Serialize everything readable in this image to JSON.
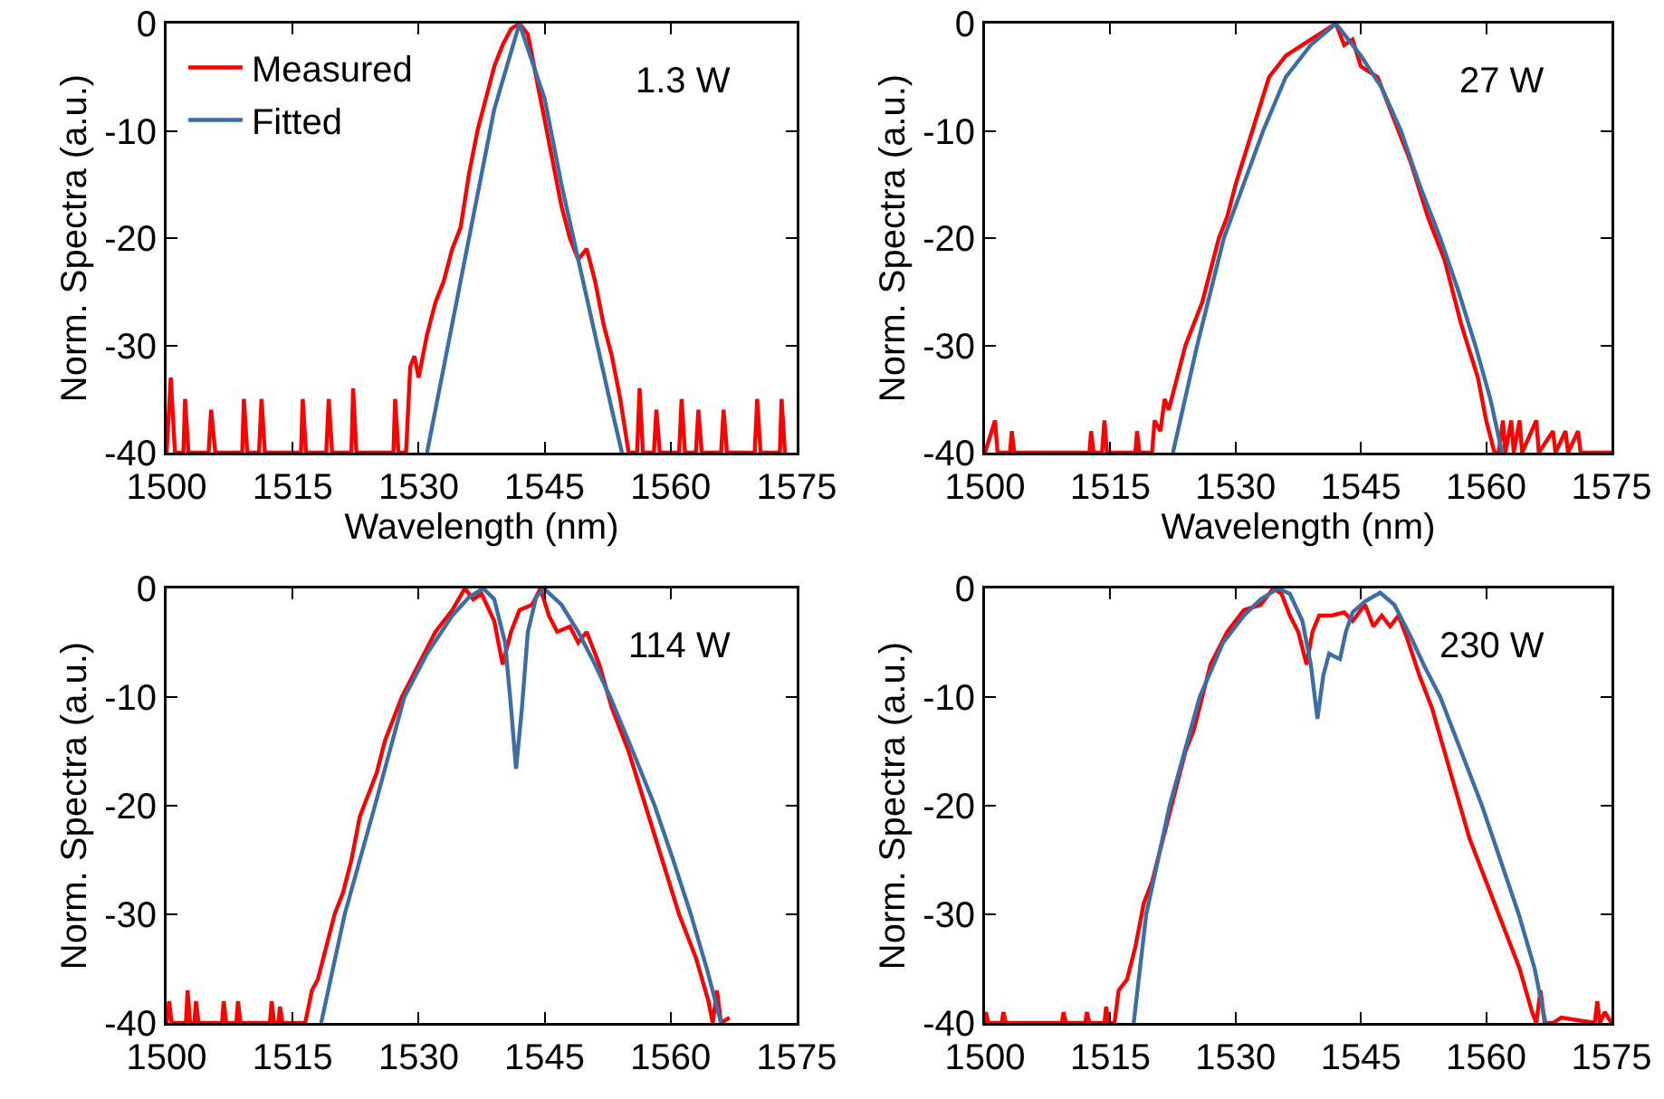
{
  "chart_data": [
    {
      "type": "line",
      "xlabel": "Wavelength (nm)",
      "ylabel": "Norm. Spectra (a.u.)",
      "annotations": [
        "1.3 W"
      ],
      "legend": "top left",
      "xlim": [
        1500,
        1575
      ],
      "xticks": [
        1500,
        1515,
        1530,
        1545,
        1560,
        1575
      ],
      "ylim": [
        -40,
        0
      ],
      "yticks": [
        -40,
        -30,
        -20,
        -10,
        0
      ],
      "series": [
        {
          "name": "Measured",
          "color": "#ff0000",
          "x": [
            1500,
            1500.5,
            1501,
            1502,
            1502.2,
            1502.6,
            1505,
            1505.3,
            1505.8,
            1509,
            1509.2,
            1509.6,
            1511,
            1511.3,
            1511.7,
            1516,
            1516.2,
            1516.6,
            1519,
            1519.3,
            1519.7,
            1522,
            1522.2,
            1522.6,
            1527,
            1527.2,
            1527.6,
            1528.5,
            1529,
            1529.5,
            1530,
            1531,
            1532,
            1533,
            1534,
            1535,
            1536,
            1537,
            1538,
            1539,
            1540,
            1541,
            1542,
            1543,
            1544,
            1545,
            1546,
            1547,
            1548,
            1549,
            1550,
            1551,
            1552,
            1553,
            1554,
            1555,
            1556,
            1556.3,
            1556.7,
            1558,
            1558.3,
            1558.7,
            1561,
            1561.3,
            1561.7,
            1563,
            1563.3,
            1563.7,
            1566,
            1566.3,
            1566.7,
            1570,
            1570.3,
            1570.7,
            1573,
            1573.2,
            1573.6
          ],
          "values": [
            -40,
            -33,
            -40,
            -40,
            -35,
            -40,
            -40,
            -36,
            -40,
            -40,
            -35,
            -40,
            -40,
            -35,
            -40,
            -40,
            -35,
            -40,
            -40,
            -35,
            -40,
            -40,
            -34,
            -40,
            -40,
            -35,
            -40,
            -40,
            -32,
            -31,
            -33,
            -29,
            -26,
            -24,
            -21,
            -19,
            -14,
            -10,
            -7,
            -4,
            -2,
            -0.5,
            0,
            -1,
            -5,
            -9,
            -13,
            -17,
            -20,
            -22,
            -21,
            -24,
            -28,
            -31,
            -35,
            -40,
            -40,
            -34,
            -40,
            -40,
            -36,
            -40,
            -40,
            -35,
            -40,
            -40,
            -36,
            -40,
            -40,
            -36,
            -40,
            -40,
            -35,
            -40,
            -40,
            -35,
            -40
          ]
        },
        {
          "name": "Fitted",
          "color": "#3c6ea5",
          "x": [
            1531,
            1533,
            1535,
            1537,
            1539,
            1542,
            1545,
            1547,
            1549,
            1551,
            1553,
            1554.2
          ],
          "values": [
            -40,
            -32,
            -24,
            -16,
            -8,
            0,
            -7,
            -15,
            -22,
            -29,
            -36,
            -40
          ]
        }
      ]
    },
    {
      "type": "line",
      "xlabel": "Wavelength (nm)",
      "ylabel": "Norm. Spectra (a.u.)",
      "annotations": [
        "27 W"
      ],
      "xlim": [
        1500,
        1575
      ],
      "xticks": [
        1500,
        1515,
        1530,
        1545,
        1560,
        1575
      ],
      "ylim": [
        -40,
        0
      ],
      "yticks": [
        -40,
        -30,
        -20,
        -10,
        0
      ],
      "series": [
        {
          "color": "#ff0000",
          "x": [
            1500,
            1501.2,
            1501.5,
            1503,
            1503.2,
            1503.5,
            1511.5,
            1512.5,
            1512.7,
            1513,
            1514,
            1514.3,
            1514.6,
            1518,
            1518.2,
            1518.5,
            1520,
            1520.3,
            1521,
            1521.5,
            1522,
            1523,
            1524,
            1526,
            1528,
            1529,
            1530,
            1532,
            1534,
            1536,
            1538,
            1540,
            1542,
            1543,
            1544,
            1545,
            1547,
            1549,
            1551,
            1553,
            1555,
            1557,
            1559,
            1560,
            1561,
            1561.5,
            1562,
            1562.3,
            1563,
            1563.3,
            1564,
            1564.3,
            1566,
            1566.3,
            1568,
            1568.3,
            1569.5,
            1569.8,
            1571,
            1571.3,
            1575
          ],
          "values": [
            -40,
            -37,
            -40,
            -40,
            -38,
            -40,
            -40,
            -40,
            -38,
            -40,
            -40,
            -37,
            -40,
            -40,
            -38,
            -40,
            -40,
            -37,
            -38,
            -35,
            -36,
            -33,
            -30,
            -26,
            -20,
            -18,
            -15,
            -10,
            -5,
            -3,
            -2,
            -1,
            0,
            -2,
            -1.5,
            -4,
            -5,
            -9,
            -13,
            -18,
            -22,
            -28,
            -33,
            -37,
            -40,
            -40,
            -37,
            -40,
            -37,
            -40,
            -37,
            -40,
            -37,
            -40,
            -38,
            -40,
            -38,
            -40,
            -38,
            -40,
            -40
          ]
        },
        {
          "color": "#3c6ea5",
          "x": [
            1522.5,
            1525.4,
            1528.6,
            1533.3,
            1536,
            1539,
            1542,
            1545,
            1547.5,
            1549.8,
            1552,
            1554.5,
            1556.7,
            1558.7,
            1560.5,
            1561.9
          ],
          "values": [
            -40,
            -30,
            -20,
            -10,
            -5,
            -2,
            0,
            -3,
            -6,
            -10,
            -15,
            -20,
            -25,
            -30,
            -35,
            -40
          ]
        }
      ]
    },
    {
      "type": "line",
      "ylabel": "Norm. Spectra (a.u.)",
      "annotations": [
        "114 W"
      ],
      "xlim": [
        1500,
        1575
      ],
      "xticks": [
        1500,
        1515,
        1530,
        1545,
        1560,
        1575
      ],
      "ylim": [
        -40,
        0
      ],
      "yticks": [
        -40,
        -30,
        -20,
        -10,
        0
      ],
      "series": [
        {
          "color": "#ff0000",
          "x": [
            1500,
            1500.3,
            1500.6,
            1502.3,
            1502.5,
            1502.8,
            1503.3,
            1503.5,
            1503.8,
            1506.6,
            1506.8,
            1507.1,
            1508.3,
            1508.5,
            1508.8,
            1512.3,
            1512.5,
            1512.8,
            1513.3,
            1513.5,
            1513.8,
            1516.3,
            1516.5,
            1517.3,
            1518,
            1519,
            1520,
            1521,
            1522,
            1523,
            1524,
            1525,
            1526,
            1527,
            1528,
            1530,
            1532,
            1534,
            1535.5,
            1536.5,
            1537.5,
            1539,
            1540,
            1541,
            1542,
            1543.5,
            1544.5,
            1545.5,
            1546.5,
            1548,
            1549,
            1550,
            1551.5,
            1553,
            1555,
            1557,
            1559,
            1561,
            1563,
            1564.5,
            1565,
            1565.5,
            1566,
            1567
          ],
          "values": [
            -40,
            -38,
            -40,
            -40,
            -37,
            -40,
            -40,
            -38,
            -40,
            -40,
            -38,
            -40,
            -40,
            -38,
            -40,
            -40,
            -38,
            -40,
            -40,
            -38.5,
            -40,
            -40,
            -40,
            -37,
            -36,
            -33,
            -30,
            -28,
            -25,
            -21,
            -19,
            -17,
            -14,
            -12,
            -10,
            -7,
            -4,
            -2,
            0,
            -1,
            -0.5,
            -3,
            -7,
            -4,
            -2,
            -1.5,
            0,
            -2.5,
            -4,
            -3.5,
            -5,
            -4,
            -7,
            -11,
            -15,
            -20,
            -25,
            -30,
            -34,
            -38,
            -40,
            -37,
            -40,
            -39.5
          ]
        },
        {
          "color": "#3c6ea5",
          "x": [
            1518.4,
            1521.2,
            1524.8,
            1528.3,
            1531,
            1534,
            1536,
            1537.7,
            1539,
            1540.3,
            1541,
            1541.6,
            1542.3,
            1543,
            1544,
            1544.9,
            1547,
            1549,
            1551,
            1552.8,
            1555.5,
            1558.1,
            1560.3,
            1562.4,
            1564.3,
            1566
          ],
          "values": [
            -40,
            -30,
            -20,
            -10,
            -6,
            -2.5,
            -0.8,
            0,
            -1,
            -5,
            -11,
            -16.6,
            -11,
            -4,
            -0.8,
            0,
            -1.5,
            -4,
            -7,
            -10,
            -15,
            -20,
            -25,
            -30,
            -35,
            -40
          ]
        }
      ]
    },
    {
      "type": "line",
      "ylabel": "Norm. Spectra (a.u.)",
      "annotations": [
        "230 W"
      ],
      "xlim": [
        1500,
        1575
      ],
      "xticks": [
        1500,
        1515,
        1530,
        1545,
        1560,
        1575
      ],
      "ylim": [
        -40,
        0
      ],
      "yticks": [
        -40,
        -30,
        -20,
        -10,
        0
      ],
      "series": [
        {
          "color": "#ff0000",
          "x": [
            1500,
            1500.1,
            1500.4,
            1502,
            1502.2,
            1502.5,
            1509.2,
            1509.4,
            1509.7,
            1512,
            1512.2,
            1512.5,
            1514.3,
            1514.5,
            1514.8,
            1515.5,
            1516,
            1517,
            1518,
            1519,
            1520,
            1521,
            1522,
            1523,
            1524,
            1525,
            1526,
            1527,
            1529,
            1531,
            1533,
            1534.5,
            1535.5,
            1536.5,
            1537.5,
            1538.5,
            1539.2,
            1540,
            1541.5,
            1543,
            1544,
            1545.5,
            1546.5,
            1547.5,
            1548.5,
            1549.5,
            1550.5,
            1552,
            1553.5,
            1555,
            1556.5,
            1558,
            1560,
            1562,
            1564,
            1565.5,
            1566,
            1566.5,
            1567,
            1568,
            1569,
            1573,
            1573.3,
            1573.6,
            1574.2,
            1575
          ],
          "values": [
            -40,
            -39,
            -40,
            -40,
            -39,
            -40,
            -40,
            -39,
            -40,
            -40,
            -39,
            -40,
            -40,
            -38.5,
            -40,
            -40,
            -37,
            -36,
            -33,
            -29,
            -27,
            -24,
            -21,
            -18,
            -15,
            -13,
            -10,
            -7,
            -4,
            -2,
            -1.5,
            0,
            -0.5,
            -2.5,
            -4,
            -7,
            -4,
            -2.5,
            -2.5,
            -2.2,
            -3,
            -1.5,
            -3.5,
            -2.5,
            -3.5,
            -2.5,
            -4.5,
            -8,
            -11,
            -15,
            -19,
            -23,
            -27,
            -31,
            -35,
            -39,
            -40,
            -37,
            -40,
            -40,
            -39.5,
            -40,
            -38,
            -40,
            -39,
            -40
          ]
        },
        {
          "color": "#3c6ea5",
          "x": [
            1517.8,
            1519.3,
            1522.1,
            1525.7,
            1528.5,
            1531,
            1533,
            1535.1,
            1536.5,
            1538,
            1539,
            1539.8,
            1540.5,
            1541.2,
            1541.9,
            1542.5,
            1543.2,
            1544,
            1545.5,
            1547.3,
            1549,
            1551,
            1552.5,
            1554.5,
            1557,
            1559.5,
            1561.7,
            1563.9,
            1565.8,
            1567.1
          ],
          "values": [
            -40,
            -30,
            -20,
            -10,
            -5,
            -2.5,
            -1,
            0,
            -0.5,
            -3,
            -7,
            -12,
            -8,
            -6,
            -6.3,
            -6.5,
            -4,
            -2.2,
            -1.2,
            -0.4,
            -1.5,
            -4.5,
            -7,
            -10,
            -15,
            -20,
            -25,
            -30,
            -35,
            -40
          ]
        }
      ]
    }
  ]
}
